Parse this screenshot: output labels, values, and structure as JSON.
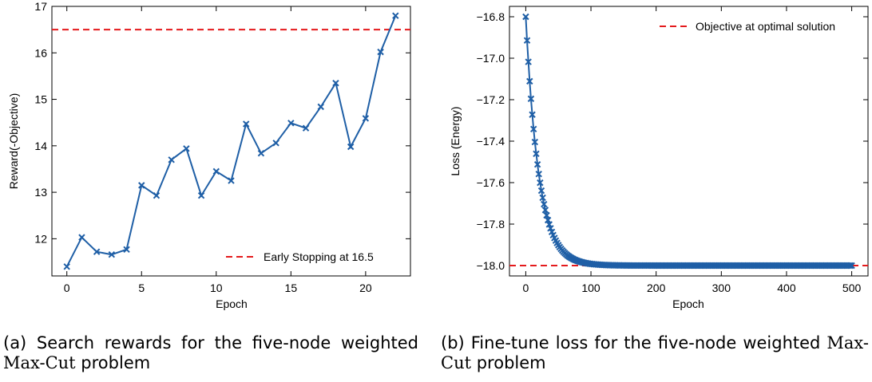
{
  "captions": {
    "a": {
      "prefix": "(a) Search rewards for the five-node weighted ",
      "sc": "Max-Cut",
      "suffix": " problem"
    },
    "b": {
      "prefix": "(b) Fine-tune loss for the five-node weighted ",
      "sc": "Max-Cut",
      "suffix": " problem"
    }
  },
  "chart_data": [
    {
      "type": "line",
      "title": "",
      "xlabel": "Epoch",
      "ylabel": "Reward(-Objective)",
      "xlim": [
        -1,
        23
      ],
      "ylim": [
        11.2,
        17.0
      ],
      "xticks": [
        0,
        5,
        10,
        15,
        20
      ],
      "xtick_labels": [
        "0",
        "5",
        "10",
        "15",
        "20"
      ],
      "yticks": [
        12,
        13,
        14,
        15,
        16,
        17
      ],
      "ytick_labels": [
        "12",
        "13",
        "14",
        "15",
        "16",
        "17"
      ],
      "grid": false,
      "legend": "bottom-right",
      "series": [
        {
          "marker": "x",
          "color": "#1f5fa6",
          "x": [
            0,
            1,
            2,
            3,
            4,
            5,
            6,
            7,
            8,
            9,
            10,
            11,
            12,
            13,
            14,
            15,
            16,
            17,
            18,
            19,
            20,
            21,
            22
          ],
          "y": [
            11.4,
            12.03,
            11.72,
            11.66,
            11.77,
            13.15,
            12.93,
            13.7,
            13.94,
            12.93,
            13.45,
            13.25,
            14.47,
            13.84,
            14.06,
            14.49,
            14.38,
            14.84,
            15.35,
            13.98,
            14.59,
            16.02,
            16.8
          ]
        }
      ],
      "hlines": [
        {
          "y": 16.5,
          "label": "Early Stopping at 16.5",
          "color": "#e41a1c",
          "style": "dashed"
        }
      ]
    },
    {
      "type": "line",
      "title": "",
      "xlabel": "Epoch",
      "ylabel": "Loss (Energy)",
      "xlim": [
        -25,
        525
      ],
      "ylim": [
        -18.05,
        -16.75
      ],
      "xticks": [
        0,
        100,
        200,
        300,
        400,
        500
      ],
      "xtick_labels": [
        "0",
        "100",
        "200",
        "300",
        "400",
        "500"
      ],
      "yticks": [
        -16.8,
        -17.0,
        -17.2,
        -17.4,
        -17.6,
        -17.8,
        -18.0
      ],
      "ytick_labels": [
        "−16.8",
        "−17.0",
        "−17.2",
        "−17.4",
        "−17.6",
        "−17.8",
        "−18.0"
      ],
      "grid": false,
      "legend": "top-right",
      "series": [
        {
          "marker": "x",
          "color": "#1f5fa6",
          "x_start": 0,
          "x_end": 500,
          "x_step": 2,
          "start_value": -16.8,
          "asymptote": -18.0,
          "decay_epochs": 20
        }
      ],
      "hlines": [
        {
          "y": -18.0,
          "label": "Objective at optimal solution",
          "color": "#e41a1c",
          "style": "dashed"
        }
      ]
    }
  ]
}
